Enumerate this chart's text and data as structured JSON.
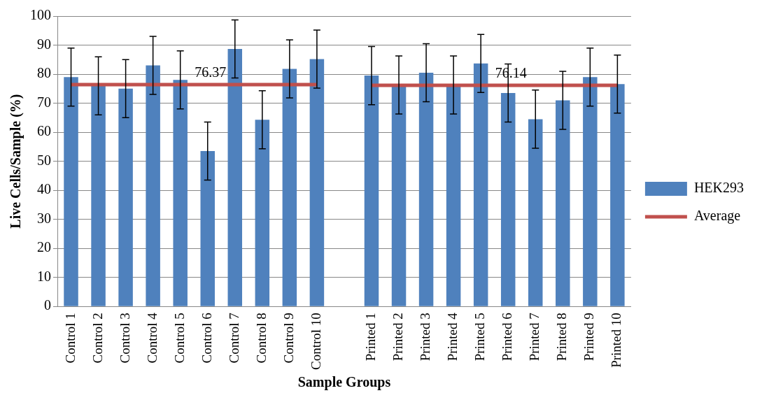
{
  "chart_data": {
    "type": "bar",
    "xlabel": "Sample Groups",
    "ylabel": "Live Cells/Sample (%)",
    "categories": [
      "Control 1",
      "Control 2",
      "Control 3",
      "Control 4",
      "Control 5",
      "Control 6",
      "Control 7",
      "Control 8",
      "Control 9",
      "Control 10",
      null,
      "Printed 1",
      "Printed 2",
      "Printed 3",
      "Printed 4",
      "Printed 5",
      "Printed 6",
      "Printed 7",
      "Printed 8",
      "Printed 9",
      "Printed 10"
    ],
    "series": [
      {
        "name": "HEK293",
        "color": "#4f81bd",
        "values": [
          79,
          76,
          75,
          83,
          78,
          53.5,
          88.7,
          64.3,
          81.8,
          85.2,
          null,
          79.5,
          76.3,
          80.5,
          76.3,
          83.7,
          73.5,
          64.5,
          71,
          79,
          76.6
        ],
        "errors": [
          10,
          10,
          10,
          10,
          10,
          10,
          10,
          10,
          10,
          10,
          null,
          10,
          10,
          10,
          10,
          10,
          10,
          10,
          10,
          10,
          10
        ]
      },
      {
        "name": "Average",
        "type": "line",
        "color": "#c0504d",
        "marker": "none",
        "values": [
          76.37,
          76.37,
          76.37,
          76.37,
          76.37,
          76.37,
          76.37,
          76.37,
          76.37,
          76.37,
          null,
          76.14,
          76.14,
          76.14,
          76.14,
          76.14,
          76.14,
          76.14,
          76.14,
          76.14,
          76.14
        ],
        "value_labels": [
          null,
          null,
          null,
          null,
          null,
          "76.37",
          null,
          null,
          null,
          null,
          null,
          null,
          null,
          null,
          null,
          null,
          "76.14",
          null,
          null,
          null,
          null
        ]
      }
    ],
    "ylim": [
      0,
      100
    ],
    "yticks": [
      0,
      10,
      20,
      30,
      40,
      50,
      60,
      70,
      80,
      90,
      100
    ],
    "grid": "y",
    "legend": "right"
  }
}
